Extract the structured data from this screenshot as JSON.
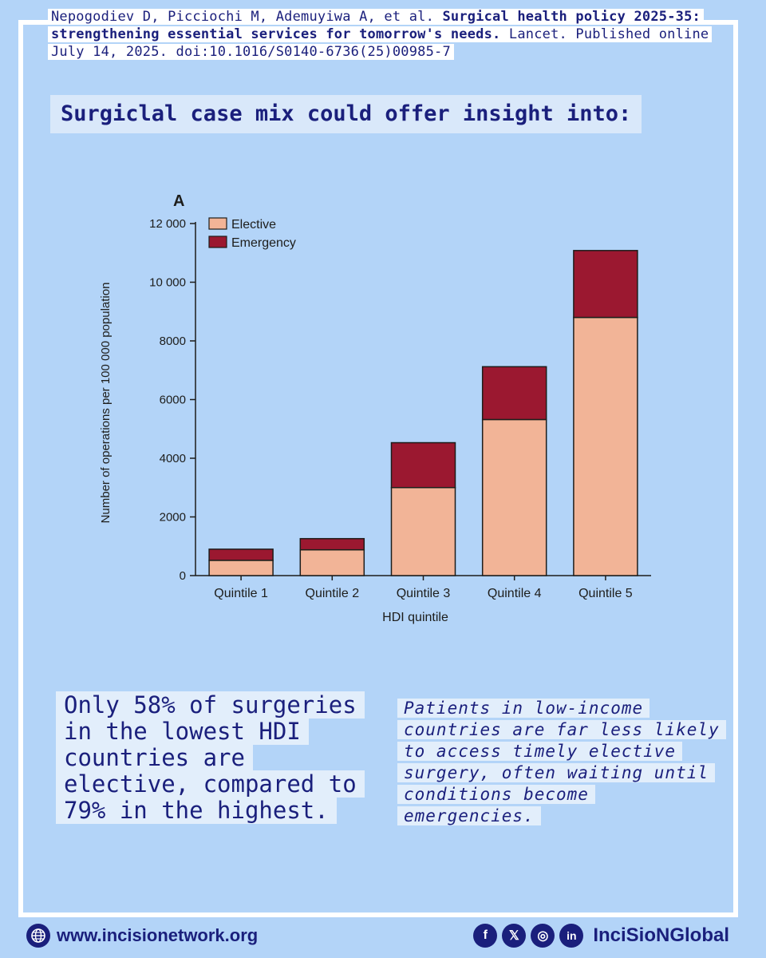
{
  "citation": {
    "authors": "Nepogodiev D, Picciochi M, Ademuyiwa A, et al.",
    "title": "Surgical health policy 2025-35: strengthening essential services for tomorrow's needs.",
    "source": "Lancet. Published online July 14, 2025. doi:10.1016/S0140-6736(25)00985-7"
  },
  "headline": "Surgiclal case mix could offer insight into:",
  "chart_data": {
    "type": "bar",
    "stacked": true,
    "panel_label": "A",
    "categories": [
      "Quintile 1",
      "Quintile 2",
      "Quintile 3",
      "Quintile 4",
      "Quintile 5"
    ],
    "series": [
      {
        "name": "Elective",
        "color": "#f2b497",
        "values": [
          520,
          880,
          3000,
          5320,
          8800
        ]
      },
      {
        "name": "Emergency",
        "color": "#9b1830",
        "values": [
          380,
          380,
          1530,
          1800,
          2280
        ]
      }
    ],
    "xlabel": "HDI quintile",
    "ylabel": "Number of operations per 100 000 population",
    "ylim": [
      0,
      12000
    ],
    "yticks": [
      0,
      2000,
      4000,
      6000,
      8000,
      10000,
      12000
    ],
    "ytick_labels": [
      "0",
      "2000",
      "4000",
      "6000",
      "8000",
      "10 000",
      "12 000"
    ],
    "legend_position": "top-left",
    "grid": false
  },
  "stat_text": "Only 58% of surgeries in the lowest HDI countries are elective, compared to 79% in the highest.",
  "note_text": "Patients in low-income countries are far less likely to access timely elective surgery, often waiting until conditions become emergencies.",
  "footer": {
    "website": "www.incisionetwork.org",
    "handle": "InciSioNGlobal",
    "icons": {
      "globe": "globe-icon",
      "facebook": "f",
      "x": "𝕏",
      "instagram": "◎",
      "linkedin": "in"
    }
  },
  "colors": {
    "background": "#b3d4f8",
    "navy": "#1a1f7c",
    "elective": "#f2b497",
    "emergency": "#9b1830"
  }
}
